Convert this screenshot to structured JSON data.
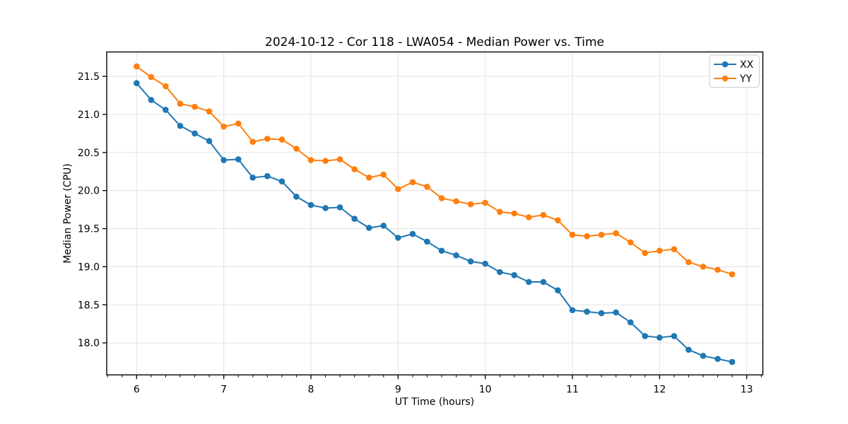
{
  "figure": {
    "background": "#ffffff"
  },
  "chart_data": {
    "type": "line",
    "title": "2024-10-12 - Cor 118 - LWA054 - Median Power vs. Time",
    "xlabel": "UT Time (hours)",
    "ylabel": "Median Power (CPU)",
    "x": [
      6.0,
      6.167,
      6.333,
      6.5,
      6.667,
      6.833,
      7.0,
      7.167,
      7.333,
      7.5,
      7.667,
      7.833,
      8.0,
      8.167,
      8.333,
      8.5,
      8.667,
      8.833,
      9.0,
      9.167,
      9.333,
      9.5,
      9.667,
      9.833,
      10.0,
      10.167,
      10.333,
      10.5,
      10.667,
      10.833,
      11.0,
      11.167,
      11.333,
      11.5,
      11.667,
      11.833,
      12.0,
      12.167,
      12.333,
      12.5,
      12.667,
      12.833
    ],
    "series": [
      {
        "name": "XX",
        "color": "#1f77b4",
        "marker": "circle",
        "values": [
          21.41,
          21.19,
          21.06,
          20.85,
          20.75,
          20.65,
          20.4,
          20.41,
          20.17,
          20.19,
          20.12,
          19.92,
          19.81,
          19.77,
          19.78,
          19.63,
          19.51,
          19.54,
          19.38,
          19.43,
          19.33,
          19.21,
          19.15,
          19.07,
          19.04,
          18.93,
          18.89,
          18.8,
          18.8,
          18.69,
          18.43,
          18.41,
          18.39,
          18.4,
          18.27,
          18.09,
          18.07,
          18.09,
          17.91,
          17.83,
          17.79,
          17.75
        ]
      },
      {
        "name": "YY",
        "color": "#ff7f0e",
        "marker": "circle",
        "values": [
          21.63,
          21.49,
          21.37,
          21.14,
          21.1,
          21.04,
          20.84,
          20.88,
          20.64,
          20.68,
          20.67,
          20.55,
          20.4,
          20.39,
          20.41,
          20.28,
          20.17,
          20.21,
          20.02,
          20.11,
          20.05,
          19.9,
          19.86,
          19.82,
          19.84,
          19.72,
          19.7,
          19.65,
          19.68,
          19.61,
          19.42,
          19.4,
          19.42,
          19.44,
          19.32,
          19.18,
          19.21,
          19.23,
          19.06,
          19.0,
          18.96,
          18.9
        ]
      }
    ],
    "xlim": [
      5.657,
      13.185
    ],
    "ylim": [
      17.58,
      21.82
    ],
    "xticks": [
      6,
      7,
      8,
      9,
      10,
      11,
      12,
      13
    ],
    "yticks": [
      18.0,
      18.5,
      19.0,
      19.5,
      20.0,
      20.5,
      21.0,
      21.5
    ],
    "x_minor_step": 0.16667,
    "grid": true,
    "grid_color": "#e0e0e0",
    "axis_color": "#000000",
    "legend_position": "upper right",
    "legend": [
      "XX",
      "YY"
    ]
  }
}
